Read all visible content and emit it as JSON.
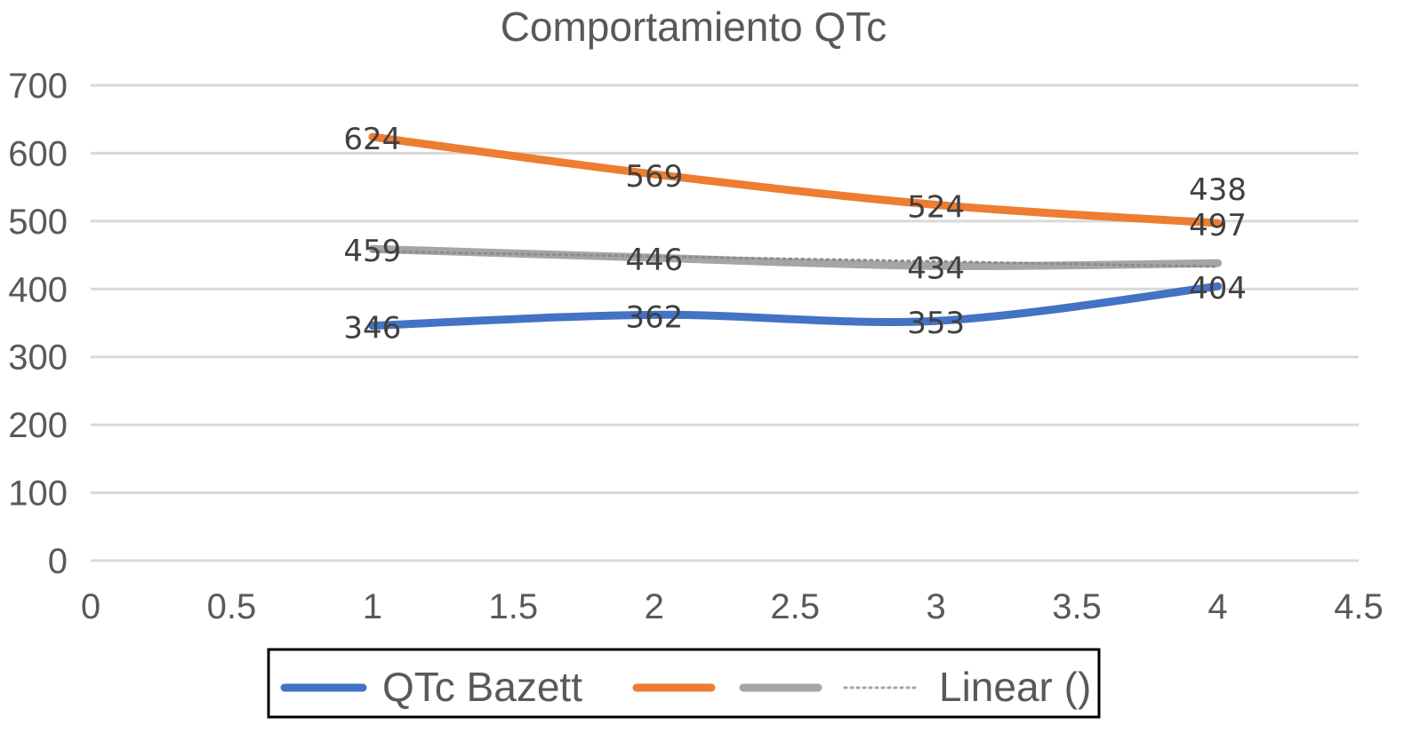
{
  "chart_data": {
    "type": "line",
    "title": "Comportamiento QTc",
    "xlim": [
      0,
      4.5
    ],
    "ylim": [
      0,
      700
    ],
    "x_ticks": [
      "0",
      "0.5",
      "1",
      "1.5",
      "2",
      "2.5",
      "3",
      "3.5",
      "4",
      "4.5"
    ],
    "y_ticks": [
      "0",
      "100",
      "200",
      "300",
      "400",
      "500",
      "600",
      "700"
    ],
    "grid": "horizontal",
    "smooth": true,
    "legend_position": "bottom",
    "x": [
      1,
      2,
      3,
      4
    ],
    "series": [
      {
        "name": "QTc Bazett",
        "values": [
          346,
          362,
          353,
          404
        ],
        "color": "#4472C4",
        "labels": [
          "346",
          "362",
          "353",
          "404"
        ]
      },
      {
        "name": "",
        "values": [
          624,
          569,
          524,
          497
        ],
        "color": "#ED7D31",
        "labels": [
          "624",
          "569",
          "524",
          "497"
        ]
      },
      {
        "name": "",
        "values": [
          459,
          446,
          434,
          438
        ],
        "color": "#A5A5A5",
        "labels": [
          "459",
          "446",
          "434",
          "438"
        ]
      }
    ],
    "trendline": {
      "name": "Linear ()",
      "type": "linear",
      "of_series": 2,
      "color": "#A5A5A5",
      "style": "dotted"
    }
  }
}
